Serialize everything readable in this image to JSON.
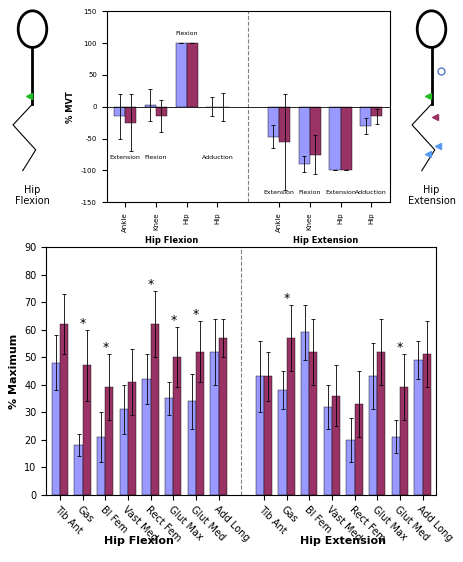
{
  "chart_data": [
    {
      "type": "bar",
      "ylabel": "% MVT",
      "ylim": [
        -150,
        150
      ],
      "yticks": [
        -150,
        -100,
        -50,
        0,
        50,
        100,
        150
      ],
      "groups": [
        {
          "name": "Hip Flexion",
          "categories": [
            "Ankle",
            "Knee",
            "Hip",
            "Hip"
          ],
          "series": [
            {
              "color": "#9999ff",
              "values": [
                -15,
                3,
                100,
                0
              ],
              "errors": [
                35,
                25,
                0,
                15
              ]
            },
            {
              "color": "#993366",
              "values": [
                -25,
                -15,
                100,
                0
              ],
              "errors": [
                45,
                25,
                0,
                22
              ]
            }
          ],
          "annotations": [
            {
              "text": "Extension",
              "index": 0,
              "y": -80
            },
            {
              "text": "Flexion",
              "index": 1,
              "y": -80
            },
            {
              "text": "Flexion",
              "index": 2,
              "y": 115
            },
            {
              "text": "Adduction",
              "index": 3,
              "y": -80
            }
          ]
        },
        {
          "name": "Hip Extension",
          "categories": [
            "Ankle",
            "Knee",
            "Hip",
            "Hip"
          ],
          "series": [
            {
              "color": "#9999ff",
              "values": [
                -47,
                -90,
                -100,
                -30
              ],
              "errors": [
                18,
                12,
                0,
                12
              ]
            },
            {
              "color": "#993366",
              "values": [
                -55,
                -75,
                -100,
                -15
              ],
              "errors": [
                75,
                30,
                0,
                12
              ]
            }
          ],
          "annotations": [
            {
              "text": "Extension",
              "index": 0,
              "y": -135
            },
            {
              "text": "Flexion",
              "index": 1,
              "y": -135
            },
            {
              "text": "Extension",
              "index": 2,
              "y": -135
            },
            {
              "text": "Adduction",
              "index": 3,
              "y": -135
            }
          ]
        }
      ]
    },
    {
      "type": "bar",
      "ylabel": "% Maximum",
      "ylim": [
        0,
        90
      ],
      "yticks": [
        0,
        10,
        20,
        30,
        40,
        50,
        60,
        70,
        80,
        90
      ],
      "groups": [
        {
          "name": "Hip Flexion",
          "categories": [
            "Tib Ant",
            "Gas",
            "Bl Fem",
            "Vast Med",
            "Rect Fem",
            "Glut Max",
            "Glut Med",
            "Add Long"
          ],
          "series": [
            {
              "color": "#9999ff",
              "values": [
                48,
                18,
                21,
                31,
                42,
                35,
                34,
                52
              ],
              "errors": [
                10,
                4,
                9,
                9,
                9,
                6,
                10,
                12
              ]
            },
            {
              "color": "#993366",
              "values": [
                62,
                47,
                39,
                41,
                62,
                50,
                52,
                57
              ],
              "errors": [
                11,
                13,
                12,
                12,
                12,
                11,
                11,
                7
              ]
            }
          ],
          "significance_mark": "*",
          "significant": [
            "Gas",
            "Bl Fem",
            "Rect Fem",
            "Glut Max",
            "Glut Med"
          ]
        },
        {
          "name": "Hip Extension",
          "categories": [
            "Tib Ant",
            "Gas",
            "Bl Fem",
            "Vast Med",
            "Rect Fem",
            "Glut Max",
            "Glut Med",
            "Add Long"
          ],
          "series": [
            {
              "color": "#9999ff",
              "values": [
                43,
                38,
                59,
                32,
                20,
                43,
                21,
                49
              ],
              "errors": [
                13,
                7,
                10,
                8,
                8,
                12,
                6,
                7
              ]
            },
            {
              "color": "#993366",
              "values": [
                43,
                57,
                52,
                36,
                33,
                52,
                39,
                51
              ],
              "errors": [
                9,
                12,
                12,
                11,
                12,
                12,
                12,
                12
              ]
            }
          ],
          "significance_mark": "*",
          "significant": [
            "Gas",
            "Glut Med"
          ]
        }
      ]
    }
  ],
  "figures": [
    {
      "label": "Hip\nFlexion"
    },
    {
      "label": "Hip\nExtension"
    }
  ]
}
